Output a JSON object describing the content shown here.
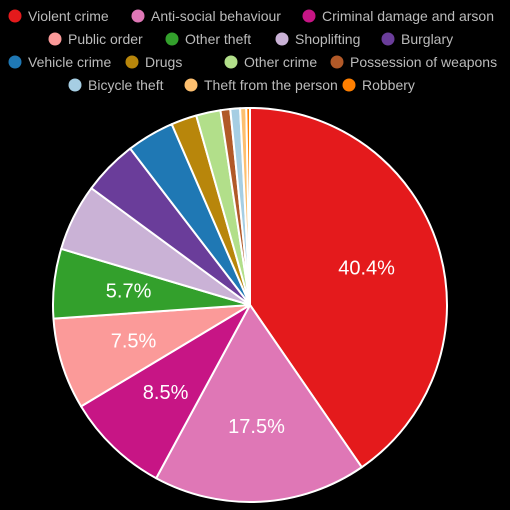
{
  "chart_data": {
    "type": "pie",
    "title": "",
    "legend_placement": "top",
    "series": [
      {
        "name": "Violent crime",
        "value": 40.4,
        "color": "#e41a1c",
        "label": "40.4%"
      },
      {
        "name": "Anti-social behaviour",
        "value": 17.5,
        "color": "#df77b6",
        "label": "17.5%"
      },
      {
        "name": "Criminal damage and arson",
        "value": 8.5,
        "color": "#c71585",
        "label": "8.5%"
      },
      {
        "name": "Public order",
        "value": 7.5,
        "color": "#fb9a99",
        "label": "7.5%"
      },
      {
        "name": "Other theft",
        "value": 5.7,
        "color": "#33a02c",
        "label": "5.7%"
      },
      {
        "name": "Shoplifting",
        "value": 5.5,
        "color": "#cab2d6",
        "label": ""
      },
      {
        "name": "Burglary",
        "value": 4.5,
        "color": "#6a3d9a",
        "label": ""
      },
      {
        "name": "Vehicle crime",
        "value": 3.9,
        "color": "#1f78b4",
        "label": ""
      },
      {
        "name": "Drugs",
        "value": 2.1,
        "color": "#b8860b",
        "label": ""
      },
      {
        "name": "Other crime",
        "value": 2.0,
        "color": "#b2df8a",
        "label": ""
      },
      {
        "name": "Possession of weapons",
        "value": 0.8,
        "color": "#b15928",
        "label": ""
      },
      {
        "name": "Bicycle theft",
        "value": 0.8,
        "color": "#a6cee3",
        "label": ""
      },
      {
        "name": "Theft from the person",
        "value": 0.5,
        "color": "#fdbf6f",
        "label": ""
      },
      {
        "name": "Robbery",
        "value": 0.3,
        "color": "#ff7f00",
        "label": ""
      }
    ]
  }
}
